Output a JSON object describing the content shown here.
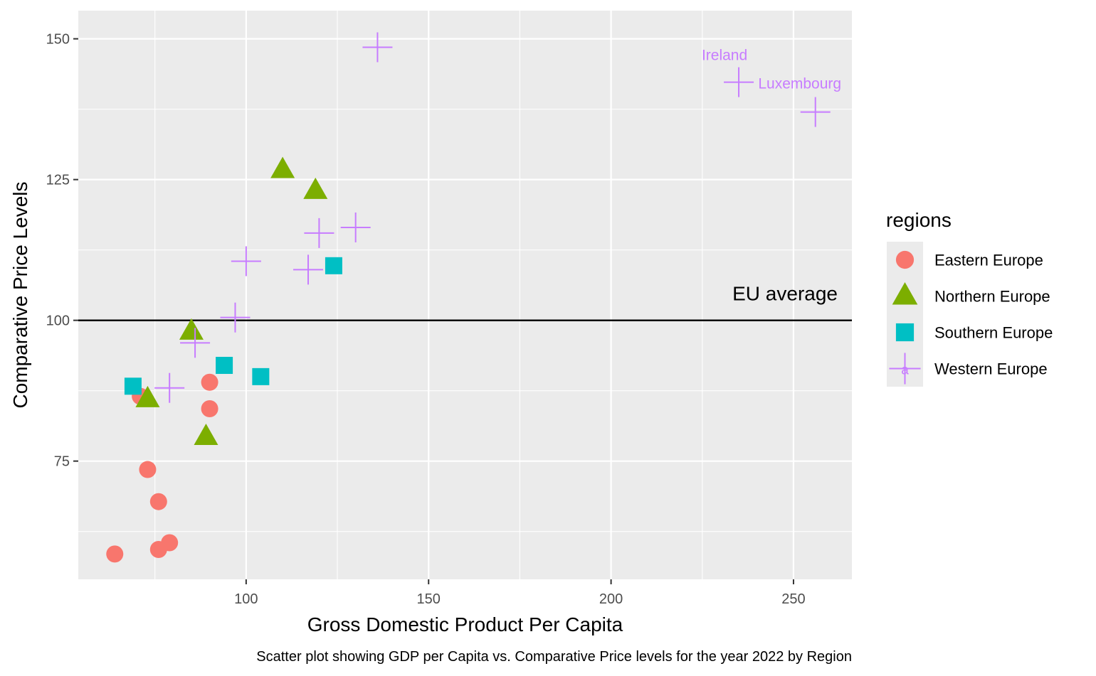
{
  "chart_data": {
    "type": "scatter",
    "title": "",
    "xlabel": "Gross Domestic Product Per Capita",
    "ylabel": "Comparative Price Levels",
    "caption": "Scatter plot showing GDP per Capita vs. Comparative Price levels for the year 2022 by Region",
    "xlim": [
      54,
      266
    ],
    "ylim": [
      54,
      155
    ],
    "x_ticks": [
      100,
      150,
      200,
      250
    ],
    "y_ticks": [
      75,
      100,
      125,
      150
    ],
    "grid": true,
    "reference_line": {
      "y": 100,
      "label": "EU average"
    },
    "legend": {
      "title": "regions",
      "placement": "right"
    },
    "series": [
      {
        "name": "Eastern Europe",
        "color": "#F8766D",
        "shape": "circle",
        "points": [
          {
            "x": 64,
            "y": 58.5
          },
          {
            "x": 71,
            "y": 86.5
          },
          {
            "x": 73,
            "y": 73.5
          },
          {
            "x": 76,
            "y": 67.8
          },
          {
            "x": 76,
            "y": 59.3
          },
          {
            "x": 79,
            "y": 60.5
          },
          {
            "x": 90,
            "y": 89
          },
          {
            "x": 90,
            "y": 84.3
          }
        ]
      },
      {
        "name": "Northern Europe",
        "color": "#7CAE00",
        "shape": "triangle",
        "points": [
          {
            "x": 73,
            "y": 86
          },
          {
            "x": 85,
            "y": 98
          },
          {
            "x": 89,
            "y": 79.3
          },
          {
            "x": 110,
            "y": 126.7
          },
          {
            "x": 119,
            "y": 123
          }
        ]
      },
      {
        "name": "Southern Europe",
        "color": "#00BFC4",
        "shape": "square",
        "points": [
          {
            "x": 69,
            "y": 88.3
          },
          {
            "x": 94,
            "y": 92
          },
          {
            "x": 104,
            "y": 90
          },
          {
            "x": 124,
            "y": 109.7
          }
        ]
      },
      {
        "name": "Western Europe",
        "color": "#C77CFF",
        "shape": "plus",
        "points": [
          {
            "x": 79,
            "y": 88
          },
          {
            "x": 86,
            "y": 96
          },
          {
            "x": 97,
            "y": 100.5
          },
          {
            "x": 100,
            "y": 110.5
          },
          {
            "x": 117,
            "y": 109
          },
          {
            "x": 120,
            "y": 115.5
          },
          {
            "x": 130,
            "y": 116.5
          },
          {
            "x": 136,
            "y": 148.5
          },
          {
            "x": 235,
            "y": 142.3,
            "label": "Ireland"
          },
          {
            "x": 256,
            "y": 137,
            "label": "Luxembourg"
          }
        ]
      }
    ]
  }
}
